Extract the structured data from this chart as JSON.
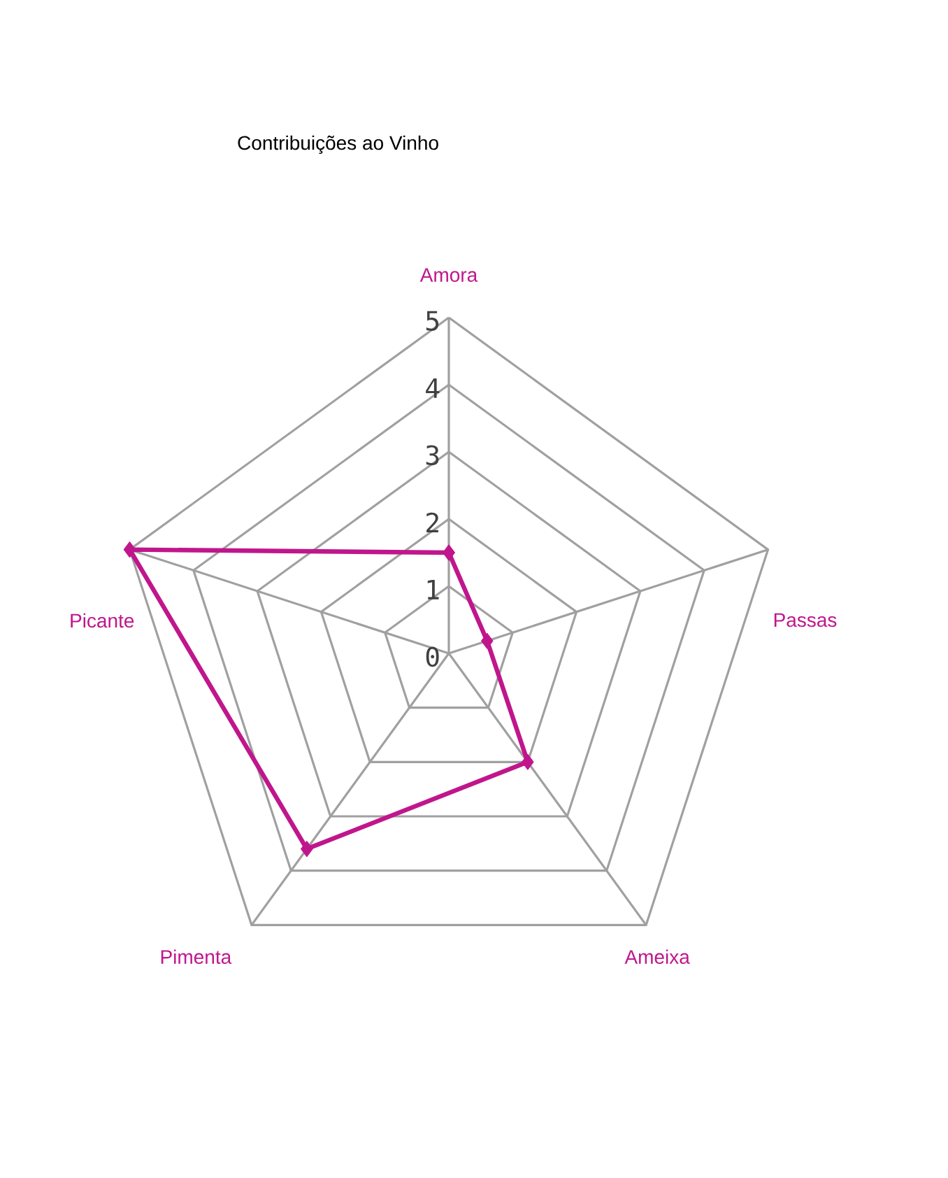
{
  "chart_data": {
    "type": "radar",
    "title": "Contribuições ao Vinho",
    "categories": [
      "Amora",
      "Passas",
      "Ameixa",
      "Pimenta",
      "Picante"
    ],
    "series": [
      {
        "color": "#c0168c",
        "values": [
          1.5,
          0.6,
          2,
          3.6,
          5
        ]
      }
    ],
    "ylim": [
      0,
      5
    ],
    "yticks": [
      0,
      1,
      2,
      3,
      4,
      5
    ],
    "grid": true,
    "marker": "diamond"
  }
}
